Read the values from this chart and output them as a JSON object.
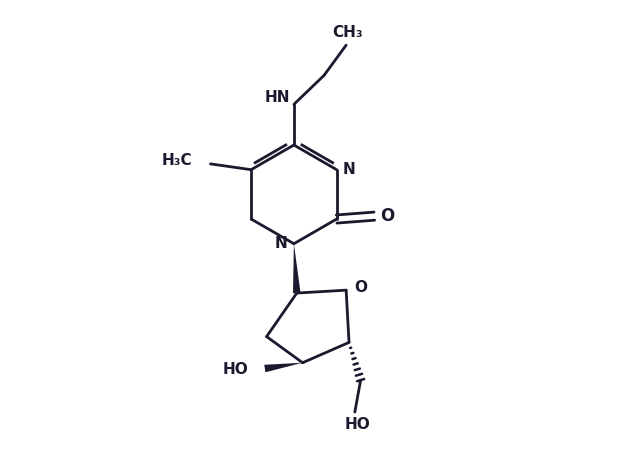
{
  "bg_color": "#ffffff",
  "line_color": "#1a1a2e",
  "line_width": 2.0,
  "figsize": [
    6.4,
    4.7
  ],
  "dpi": 100,
  "xlim": [
    2.0,
    8.5
  ],
  "ylim": [
    1.5,
    9.5
  ]
}
